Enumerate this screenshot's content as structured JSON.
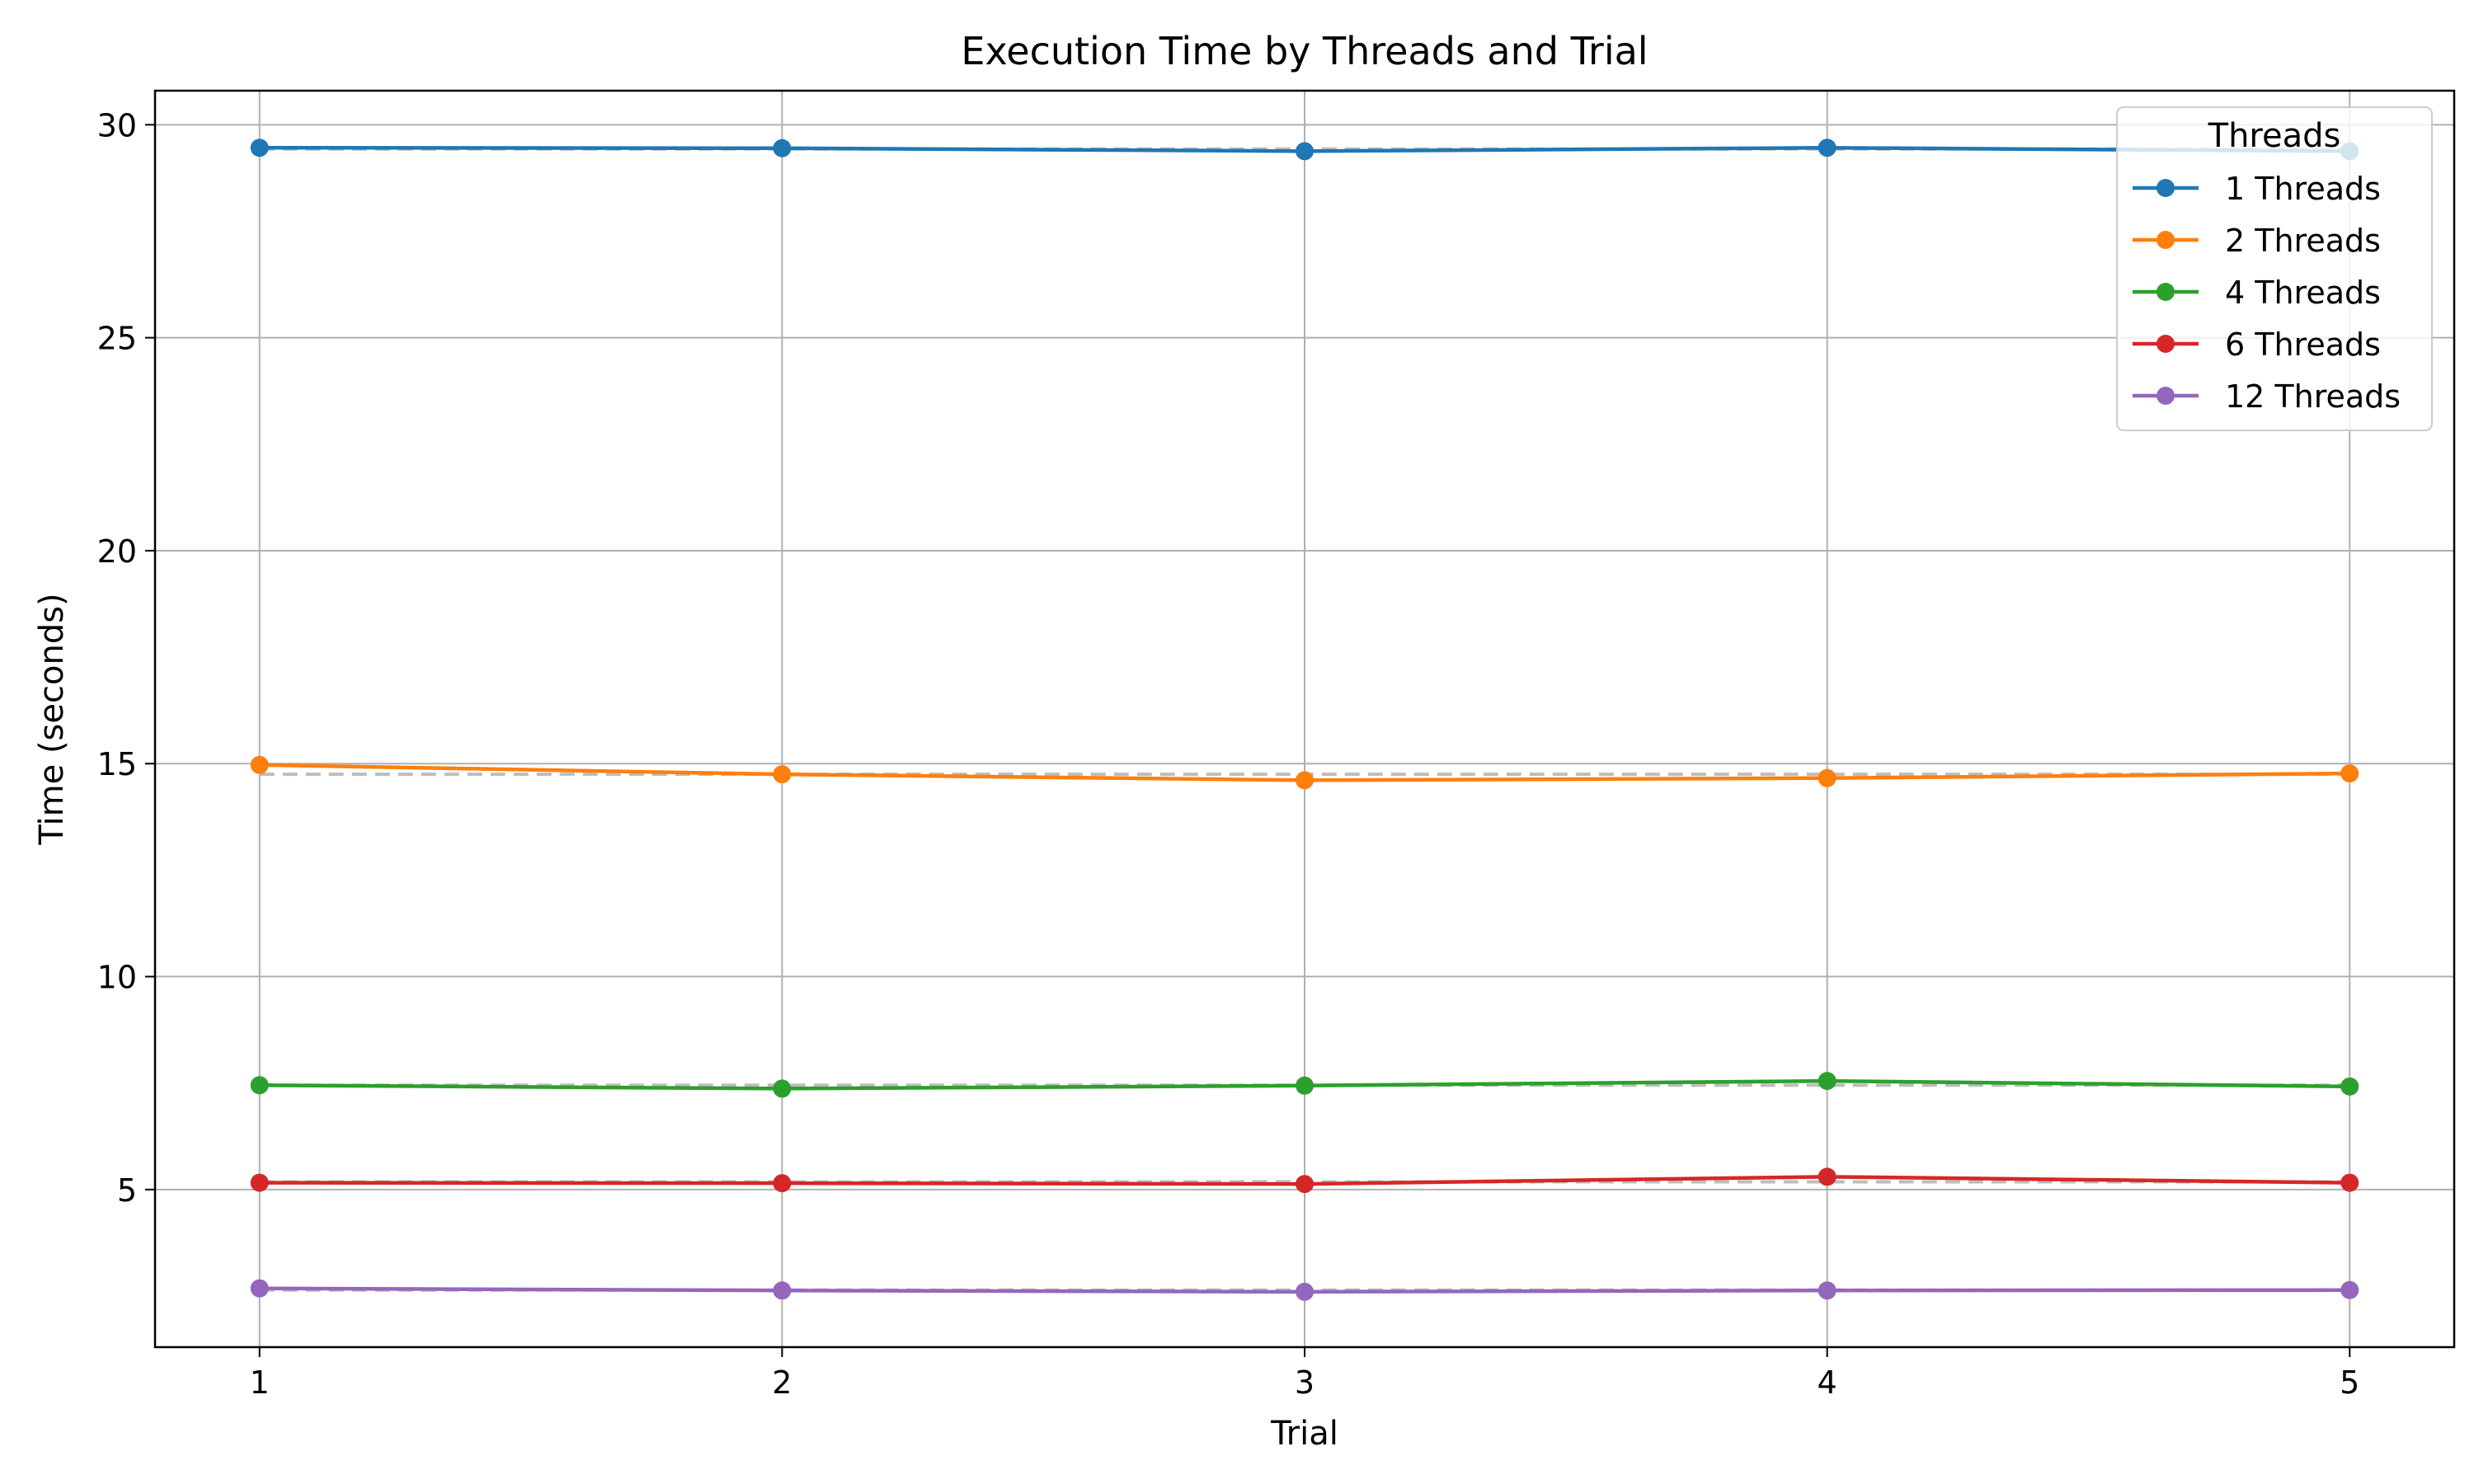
{
  "chart_data": {
    "type": "line",
    "title": "Execution Time by Threads and Trial",
    "xlabel": "Trial",
    "ylabel": "Time (seconds)",
    "x": [
      1,
      2,
      3,
      4,
      5
    ],
    "xticks": [
      "1",
      "2",
      "3",
      "4",
      "5"
    ],
    "yticks": [
      "5",
      "10",
      "15",
      "20",
      "25",
      "30"
    ],
    "xlim": [
      0.8,
      5.2
    ],
    "ylim": [
      1.3,
      30.8
    ],
    "grid": true,
    "legend": {
      "title": "Threads",
      "position": "top-right"
    },
    "series": [
      {
        "name": "1 Threads",
        "color": "#1f77b4",
        "values": [
          29.46,
          29.45,
          29.38,
          29.46,
          29.38
        ],
        "mean": 29.43
      },
      {
        "name": "2 Threads",
        "color": "#ff7f0e",
        "values": [
          14.97,
          14.75,
          14.61,
          14.66,
          14.77
        ],
        "mean": 14.75
      },
      {
        "name": "4 Threads",
        "color": "#2ca02c",
        "values": [
          7.45,
          7.37,
          7.44,
          7.55,
          7.42
        ],
        "mean": 7.45
      },
      {
        "name": "6 Threads",
        "color": "#d62728",
        "values": [
          5.16,
          5.15,
          5.13,
          5.3,
          5.16
        ],
        "mean": 5.18
      },
      {
        "name": "12 Threads",
        "color": "#9467bd",
        "values": [
          2.68,
          2.63,
          2.6,
          2.63,
          2.64
        ],
        "mean": 2.64
      }
    ]
  }
}
